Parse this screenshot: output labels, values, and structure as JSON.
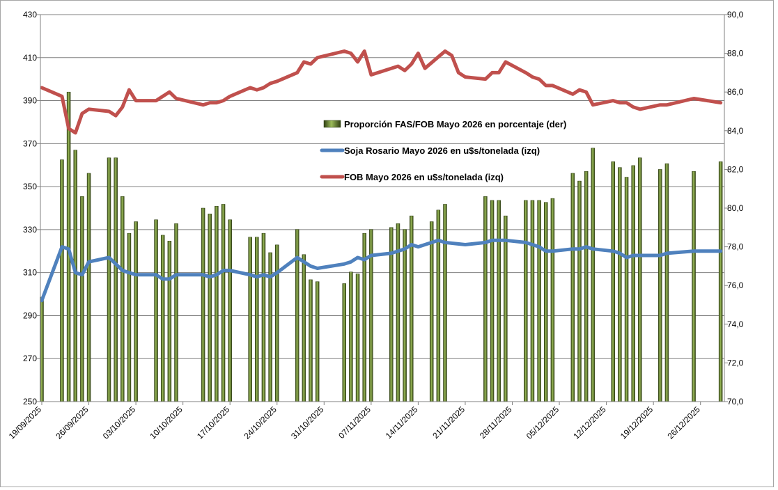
{
  "chart_data": {
    "type": "bar+line",
    "title": "",
    "x_tick_labels": [
      "19/09/2025",
      "26/09/2025",
      "03/10/2025",
      "10/10/2025",
      "17/10/2025",
      "24/10/2025",
      "31/10/2025",
      "07/11/2025",
      "14/11/2025",
      "21/11/2025",
      "28/11/2025",
      "05/12/2025",
      "12/12/2025",
      "19/12/2025",
      "26/12/2025"
    ],
    "x_day_range": [
      0,
      103
    ],
    "left_axis": {
      "min": 250,
      "max": 430,
      "step": 20,
      "ticks": [
        "250",
        "270",
        "290",
        "310",
        "330",
        "350",
        "370",
        "390",
        "410",
        "430"
      ]
    },
    "right_axis": {
      "min": 70,
      "max": 90,
      "step": 2,
      "ticks": [
        "70,0",
        "72,0",
        "74,0",
        "76,0",
        "78,0",
        "80,0",
        "82,0",
        "84,0",
        "86,0",
        "88,0",
        "90,0"
      ]
    },
    "colors": {
      "bar": "#6b8e23",
      "bar_dark": "#2f3f12",
      "soja": "#4f81bd",
      "fob": "#c0504d",
      "grid": "#808080"
    },
    "legend": [
      {
        "key": "bar",
        "label": "Proporción FAS/FOB Mayo 2026 en porcentaje (der)"
      },
      {
        "key": "soja",
        "label": "Soja Rosario Mayo 2026 en u$s/tonelada (izq)"
      },
      {
        "key": "fob",
        "label": "FOB Mayo 2026 en u$s/tonelada (izq)"
      }
    ],
    "series": [
      {
        "name": "Proporción FAS/FOB Mayo 2026 en porcentaje (der)",
        "axis": "right",
        "kind": "bar",
        "points": [
          [
            0,
            75.4
          ],
          [
            3,
            82.5
          ],
          [
            4,
            86.0
          ],
          [
            5,
            83.0
          ],
          [
            6,
            80.6
          ],
          [
            7,
            81.8
          ],
          [
            10,
            82.6
          ],
          [
            11,
            82.6
          ],
          [
            12,
            80.6
          ],
          [
            13,
            78.7
          ],
          [
            14,
            79.3
          ],
          [
            17,
            79.4
          ],
          [
            18,
            78.6
          ],
          [
            19,
            78.3
          ],
          [
            20,
            79.2
          ],
          [
            24,
            80.0
          ],
          [
            25,
            79.7
          ],
          [
            26,
            80.1
          ],
          [
            27,
            80.2
          ],
          [
            28,
            79.4
          ],
          [
            31,
            78.5
          ],
          [
            32,
            78.5
          ],
          [
            33,
            78.7
          ],
          [
            34,
            77.7
          ],
          [
            35,
            78.1
          ],
          [
            38,
            78.9
          ],
          [
            39,
            77.6
          ],
          [
            40,
            76.3
          ],
          [
            41,
            76.2
          ],
          [
            45,
            76.1
          ],
          [
            46,
            76.7
          ],
          [
            47,
            76.6
          ],
          [
            48,
            78.7
          ],
          [
            49,
            78.9
          ],
          [
            52,
            79.0
          ],
          [
            53,
            79.2
          ],
          [
            54,
            78.9
          ],
          [
            55,
            79.6
          ],
          [
            58,
            79.3
          ],
          [
            59,
            79.9
          ],
          [
            60,
            80.2
          ],
          [
            66,
            80.6
          ],
          [
            67,
            80.4
          ],
          [
            68,
            80.4
          ],
          [
            69,
            79.6
          ],
          [
            72,
            80.4
          ],
          [
            73,
            80.4
          ],
          [
            74,
            80.4
          ],
          [
            75,
            80.3
          ],
          [
            76,
            80.5
          ],
          [
            79,
            81.8
          ],
          [
            80,
            81.4
          ],
          [
            81,
            81.9
          ],
          [
            82,
            83.1
          ],
          [
            85,
            82.4
          ],
          [
            86,
            82.1
          ],
          [
            87,
            81.6
          ],
          [
            88,
            82.2
          ],
          [
            89,
            82.6
          ],
          [
            92,
            82.0
          ],
          [
            93,
            82.3
          ],
          [
            97,
            81.9
          ],
          [
            101,
            82.4
          ]
        ]
      },
      {
        "name": "Soja Rosario Mayo 2026 en u$s/tonelada (izq)",
        "axis": "left",
        "kind": "line",
        "points": [
          [
            0,
            297
          ],
          [
            3,
            322
          ],
          [
            4,
            321
          ],
          [
            5,
            310
          ],
          [
            6,
            309
          ],
          [
            7,
            315
          ],
          [
            10,
            317
          ],
          [
            11,
            314
          ],
          [
            12,
            311
          ],
          [
            13,
            310
          ],
          [
            14,
            309
          ],
          [
            17,
            309
          ],
          [
            18,
            307
          ],
          [
            19,
            307
          ],
          [
            20,
            309
          ],
          [
            24,
            309
          ],
          [
            25,
            308
          ],
          [
            26,
            309
          ],
          [
            27,
            311
          ],
          [
            28,
            311
          ],
          [
            31,
            309
          ],
          [
            32,
            308
          ],
          [
            33,
            309
          ],
          [
            34,
            308
          ],
          [
            35,
            310
          ],
          [
            38,
            317
          ],
          [
            39,
            315
          ],
          [
            40,
            313
          ],
          [
            41,
            312
          ],
          [
            45,
            314
          ],
          [
            46,
            315
          ],
          [
            47,
            317
          ],
          [
            48,
            316
          ],
          [
            49,
            318
          ],
          [
            52,
            319
          ],
          [
            53,
            320
          ],
          [
            54,
            321
          ],
          [
            55,
            323
          ],
          [
            56,
            322
          ],
          [
            58,
            324
          ],
          [
            59,
            325
          ],
          [
            60,
            324
          ],
          [
            63,
            323
          ],
          [
            66,
            324
          ],
          [
            67,
            325
          ],
          [
            68,
            325
          ],
          [
            69,
            325
          ],
          [
            72,
            324
          ],
          [
            73,
            323
          ],
          [
            74,
            322
          ],
          [
            75,
            320
          ],
          [
            76,
            320
          ],
          [
            79,
            321
          ],
          [
            80,
            321
          ],
          [
            81,
            322
          ],
          [
            82,
            321
          ],
          [
            85,
            320
          ],
          [
            86,
            319
          ],
          [
            87,
            317
          ],
          [
            88,
            318
          ],
          [
            89,
            318
          ],
          [
            92,
            318
          ],
          [
            93,
            319
          ],
          [
            97,
            320
          ],
          [
            101,
            320
          ]
        ]
      },
      {
        "name": "FOB Mayo 2026 en u$s/tonelada (izq)",
        "axis": "left",
        "kind": "line",
        "points": [
          [
            0,
            396
          ],
          [
            3,
            392
          ],
          [
            4,
            377
          ],
          [
            5,
            375
          ],
          [
            6,
            384
          ],
          [
            7,
            386
          ],
          [
            10,
            385
          ],
          [
            11,
            383
          ],
          [
            12,
            387
          ],
          [
            13,
            395
          ],
          [
            14,
            390
          ],
          [
            17,
            390
          ],
          [
            18,
            392
          ],
          [
            19,
            394
          ],
          [
            20,
            391
          ],
          [
            24,
            388
          ],
          [
            25,
            389
          ],
          [
            26,
            389
          ],
          [
            27,
            390
          ],
          [
            28,
            392
          ],
          [
            31,
            396
          ],
          [
            32,
            395
          ],
          [
            33,
            396
          ],
          [
            34,
            398
          ],
          [
            35,
            399
          ],
          [
            38,
            403
          ],
          [
            39,
            408
          ],
          [
            40,
            407
          ],
          [
            41,
            410
          ],
          [
            45,
            413
          ],
          [
            46,
            412
          ],
          [
            47,
            408
          ],
          [
            48,
            413
          ],
          [
            49,
            402
          ],
          [
            52,
            405
          ],
          [
            53,
            406
          ],
          [
            54,
            404
          ],
          [
            55,
            407
          ],
          [
            56,
            412
          ],
          [
            57,
            405
          ],
          [
            60,
            413
          ],
          [
            61,
            411
          ],
          [
            62,
            403
          ],
          [
            63,
            401
          ],
          [
            66,
            400
          ],
          [
            67,
            403
          ],
          [
            68,
            403
          ],
          [
            69,
            408
          ],
          [
            72,
            403
          ],
          [
            73,
            401
          ],
          [
            74,
            400
          ],
          [
            75,
            397
          ],
          [
            76,
            397
          ],
          [
            79,
            393
          ],
          [
            80,
            395
          ],
          [
            81,
            394
          ],
          [
            82,
            388
          ],
          [
            85,
            390
          ],
          [
            86,
            389
          ],
          [
            87,
            389
          ],
          [
            88,
            387
          ],
          [
            89,
            386
          ],
          [
            92,
            388
          ],
          [
            93,
            388
          ],
          [
            97,
            391
          ],
          [
            101,
            389
          ]
        ]
      }
    ]
  }
}
